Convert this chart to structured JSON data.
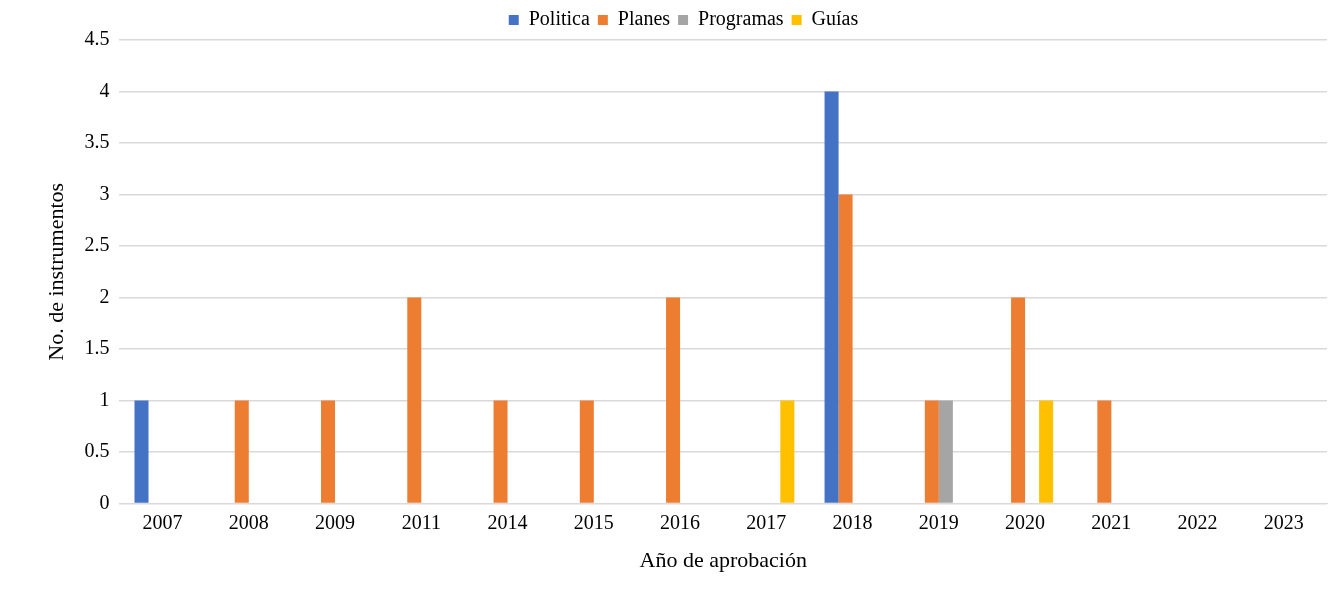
{
  "chart_data": {
    "type": "bar",
    "xlabel": "Año de aprobación",
    "ylabel": "No. de instrumentos",
    "categories": [
      "2007",
      "2008",
      "2009",
      "2011",
      "2014",
      "2015",
      "2016",
      "2017",
      "2018",
      "2019",
      "2020",
      "2021",
      "2022",
      "2023"
    ],
    "series": [
      {
        "name": "Politica",
        "color": "#4472c4",
        "values": [
          1,
          0,
          0,
          0,
          0,
          0,
          0,
          0,
          4,
          0,
          0,
          0,
          0,
          0
        ]
      },
      {
        "name": "Planes",
        "color": "#ed7d31",
        "values": [
          0,
          1,
          1,
          2,
          1,
          1,
          2,
          0,
          3,
          1,
          2,
          1,
          0,
          0
        ]
      },
      {
        "name": "Programas",
        "color": "#a5a5a5",
        "values": [
          0,
          0,
          0,
          0,
          0,
          0,
          0,
          0,
          0,
          1,
          0,
          0,
          0,
          0
        ]
      },
      {
        "name": "Guías",
        "color": "#ffc000",
        "values": [
          0,
          0,
          0,
          0,
          0,
          0,
          0,
          1,
          0,
          0,
          1,
          0,
          0,
          0
        ]
      }
    ],
    "ylim": [
      0,
      4.5
    ],
    "yticks": [
      0,
      0.5,
      1,
      1.5,
      2,
      2.5,
      3,
      3.5,
      4,
      4.5
    ],
    "grid": "y",
    "legend": "top"
  }
}
